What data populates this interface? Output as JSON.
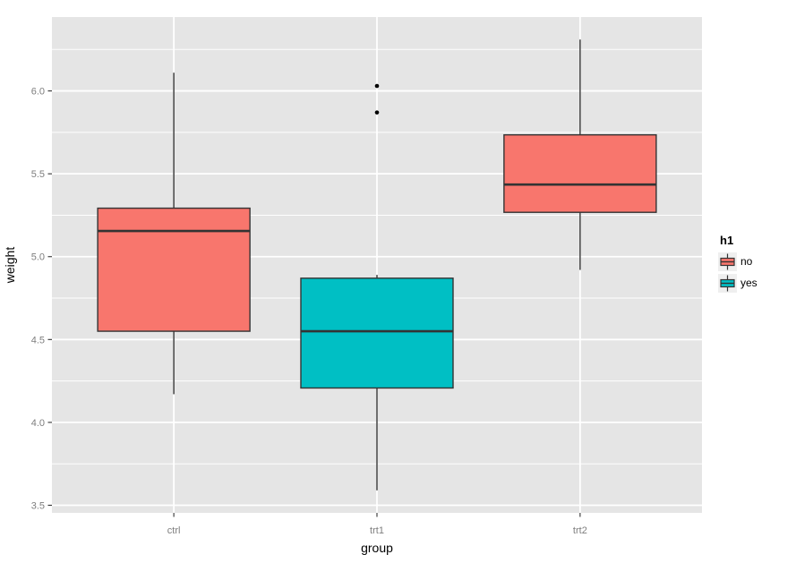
{
  "figure": {
    "background": "#FFFFFF",
    "panel_background": "#E5E5E5",
    "grid_color": "#FFFFFF",
    "legend_key_background": "#EFEFEF"
  },
  "chart_data": {
    "type": "boxplot",
    "title": "",
    "xlabel": "group",
    "ylabel": "weight",
    "categories": [
      "ctrl",
      "trt1",
      "trt2"
    ],
    "y_axis": {
      "ticks": [
        {
          "value": 3.5,
          "label": "3.5"
        },
        {
          "value": 4.0,
          "label": "4.0"
        },
        {
          "value": 4.5,
          "label": "4.5"
        },
        {
          "value": 5.0,
          "label": "5.0"
        },
        {
          "value": 5.5,
          "label": "5.5"
        },
        {
          "value": 6.0,
          "label": "6.0"
        }
      ],
      "minor_ticks": [
        3.75,
        4.25,
        4.75,
        5.25,
        5.75,
        6.25
      ],
      "range": [
        3.454,
        6.446
      ]
    },
    "legend": {
      "title": "h1",
      "position": "right",
      "entries": [
        {
          "label": "no",
          "fill": "#F8766D"
        },
        {
          "label": "yes",
          "fill": "#00BFC4"
        }
      ]
    },
    "boxes": [
      {
        "category": "ctrl",
        "legend_group": "no",
        "fill": "#F8766D",
        "whisker_low": 4.17,
        "q1": 4.55,
        "median": 5.155,
        "q3": 5.2925,
        "whisker_high": 6.11,
        "outliers": []
      },
      {
        "category": "trt1",
        "legend_group": "yes",
        "fill": "#00BFC4",
        "whisker_low": 3.59,
        "q1": 4.2075,
        "median": 4.55,
        "q3": 4.87,
        "whisker_high": 4.89,
        "outliers": [
          5.87,
          6.03
        ]
      },
      {
        "category": "trt2",
        "legend_group": "no",
        "fill": "#F8766D",
        "whisker_low": 4.92,
        "q1": 5.2675,
        "median": 5.435,
        "q3": 5.735,
        "whisker_high": 6.31,
        "outliers": []
      }
    ],
    "style": {
      "box_border": "#333333",
      "median_color": "#333333",
      "whisker_color": "#333333",
      "outlier_color": "#000000",
      "tick_mark_color": "#333333",
      "tick_label_color": "#7E7E7E",
      "axis_title_color": "#000000"
    }
  }
}
